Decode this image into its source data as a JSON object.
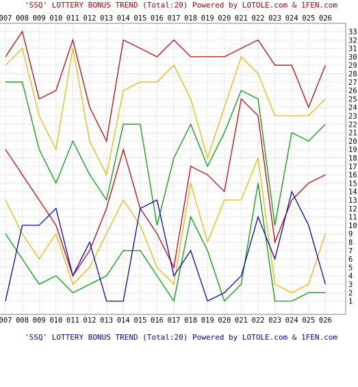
{
  "chart_data": {
    "type": "line",
    "title": "'SSQ' LOTTERY BONUS TREND (Total:20)  Powered by LOTOLE.com & 1FEN.com",
    "footer": "'SSQ' LOTTERY BONUS TREND (Total:20)  Powered by LOTOLE.com & 1FEN.com",
    "categories": [
      "007",
      "008",
      "009",
      "010",
      "011",
      "012",
      "013",
      "014",
      "015",
      "016",
      "017",
      "018",
      "019",
      "020",
      "021",
      "022",
      "023",
      "024",
      "025",
      "026"
    ],
    "y_ticks": [
      1,
      2,
      3,
      4,
      5,
      6,
      7,
      8,
      9,
      10,
      11,
      12,
      13,
      14,
      15,
      16,
      17,
      18,
      19,
      20,
      21,
      22,
      23,
      24,
      25,
      26,
      27,
      28,
      29,
      30,
      31,
      32,
      33
    ],
    "ylim": [
      1,
      33
    ],
    "grid": true,
    "series": [
      {
        "color": "#cc0000",
        "values": [
          30,
          33,
          25,
          26,
          32,
          24,
          20,
          32,
          31,
          30,
          32,
          30,
          30,
          30,
          31,
          32,
          29,
          29,
          24,
          29
        ]
      },
      {
        "color": "#f0b400",
        "values": [
          29,
          31,
          23,
          19,
          31,
          20,
          16,
          26,
          27,
          27,
          29,
          25,
          18,
          24,
          30,
          28,
          23,
          23,
          23,
          25
        ]
      },
      {
        "color": "#00a000",
        "values": [
          27,
          27,
          19,
          15,
          20,
          16,
          13,
          22,
          22,
          10,
          18,
          22,
          17,
          21,
          26,
          25,
          10,
          21,
          20,
          22
        ]
      },
      {
        "color": "#cc0000",
        "values": [
          19,
          16,
          13,
          10,
          4,
          7,
          12,
          19,
          12,
          9,
          5,
          17,
          16,
          14,
          25,
          23,
          8,
          13,
          15,
          16
        ]
      },
      {
        "color": "#f0b400",
        "values": [
          13,
          9,
          6,
          9,
          3,
          5,
          9,
          13,
          10,
          5,
          3,
          15,
          8,
          13,
          13,
          18,
          3,
          2,
          3,
          9
        ]
      },
      {
        "color": "#00a000",
        "values": [
          9,
          6,
          3,
          4,
          2,
          3,
          4,
          7,
          7,
          4,
          1,
          11,
          7,
          1,
          3,
          15,
          1,
          1,
          2,
          2
        ]
      },
      {
        "color": "#0000cc",
        "values": [
          1,
          10,
          10,
          12,
          4,
          8,
          1,
          1,
          12,
          13,
          4,
          7,
          1,
          2,
          4,
          11,
          6,
          14,
          10,
          3
        ]
      }
    ]
  }
}
